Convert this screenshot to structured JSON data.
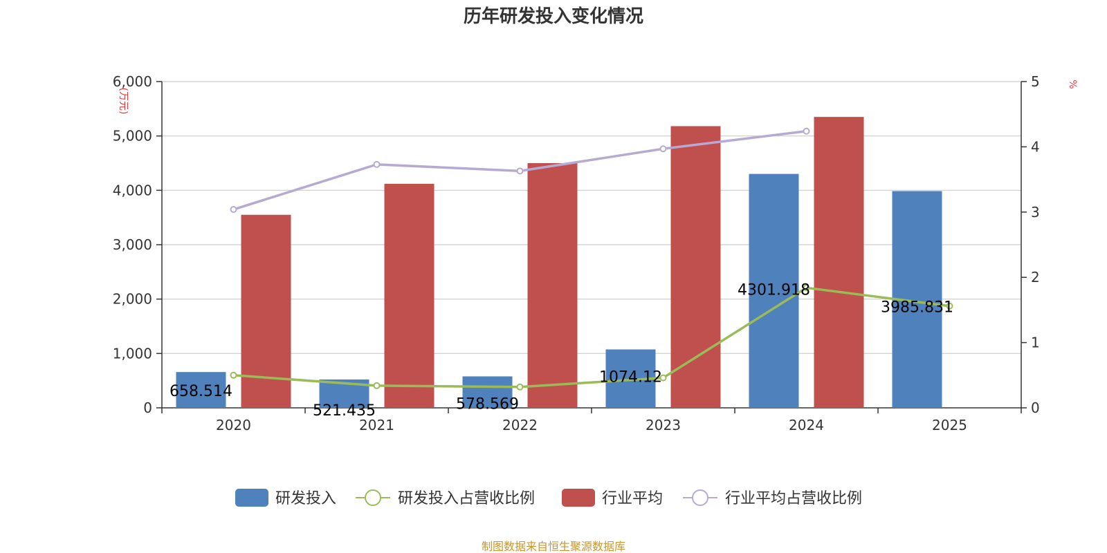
{
  "chart_data": {
    "type": "bar",
    "title": "历年研发投入变化情况",
    "categories": [
      "2020",
      "2021",
      "2022",
      "2023",
      "2024",
      "2025"
    ],
    "y_left": {
      "unit_label": "(万元)",
      "ylim": [
        0,
        6000
      ],
      "ticks": [
        0,
        1000,
        2000,
        3000,
        4000,
        5000,
        6000
      ],
      "tick_labels": [
        "0",
        "1,000",
        "2,000",
        "3,000",
        "4,000",
        "5,000",
        "6,000"
      ]
    },
    "y_right": {
      "unit_label": "%",
      "ylim": [
        0,
        5
      ],
      "ticks": [
        0,
        1,
        2,
        3,
        4,
        5
      ],
      "tick_labels": [
        "0",
        "1",
        "2",
        "3",
        "4",
        "5"
      ]
    },
    "grid": true,
    "legend_placement": "bottom-center",
    "series": [
      {
        "name": "研发投入",
        "type": "bar",
        "axis": "left",
        "color": "#4f81bd",
        "values": [
          658.514,
          521.435,
          578.569,
          1074.12,
          4301.918,
          3985.831
        ],
        "labels": [
          "658.514",
          "521.435",
          "578.569",
          "1074.12",
          "4301.918",
          "3985.831"
        ]
      },
      {
        "name": "研发投入占营收比例",
        "type": "line",
        "axis": "right",
        "color": "#9bbb59",
        "values": [
          0.5,
          0.34,
          0.32,
          0.46,
          1.84,
          1.56
        ]
      },
      {
        "name": "行业平均",
        "type": "bar",
        "axis": "left",
        "color": "#c0504d",
        "values": [
          3550,
          4120,
          4500,
          5180,
          5350,
          null
        ]
      },
      {
        "name": "行业平均占营收比例",
        "type": "line",
        "axis": "right",
        "color": "#b7a9d1",
        "values": [
          3.04,
          3.73,
          3.63,
          3.97,
          4.24,
          null
        ]
      }
    ],
    "source": "制图数据来自恒生聚源数据库"
  },
  "colors": {
    "axis": "#333333",
    "grid": "#cccccc",
    "unit_label": "#e23b3b",
    "source": "#c8962c"
  }
}
